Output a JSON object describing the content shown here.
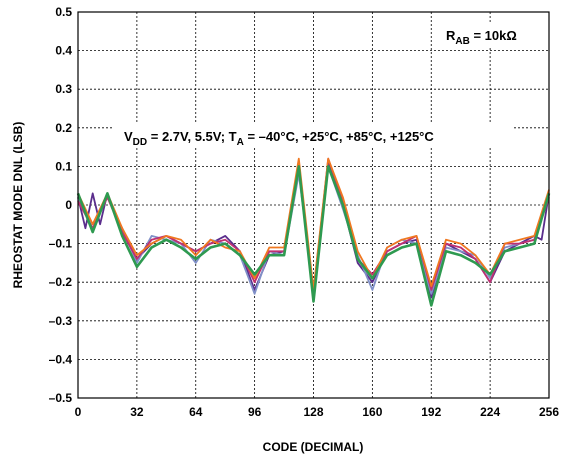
{
  "chart_data": {
    "type": "line",
    "xlabel": "CODE (DECIMAL)",
    "ylabel": "RHEOSTAT MODE DNL (LSB)",
    "xlim": [
      0,
      256
    ],
    "ylim": [
      -0.5,
      0.5
    ],
    "grid": true,
    "x_ticks": [
      "0",
      "32",
      "64",
      "96",
      "128",
      "160",
      "192",
      "224",
      "256"
    ],
    "y_ticks": [
      "0.5",
      "0.4",
      "0.3",
      "0.2",
      "0.1",
      "0",
      "–0.1",
      "–0.2",
      "–0.3",
      "–0.4",
      "–0.5"
    ],
    "annotations": {
      "rab": {
        "base": "R",
        "sub": "AB",
        "rest": " = 10kΩ"
      },
      "conditions": {
        "p1": "V",
        "sub1": "DD",
        "p2": " = 2.7V, 5.5V; T",
        "sub2": "A",
        "p3": " = –40°C, +25°C, +85°C, +125°C"
      }
    },
    "series": [
      {
        "color": "#5a2d8c",
        "x": [
          0,
          4,
          8,
          12,
          16,
          24,
          32,
          40,
          48,
          56,
          64,
          72,
          80,
          88,
          96,
          104,
          112,
          120,
          128,
          136,
          144,
          152,
          160,
          168,
          176,
          184,
          192,
          200,
          208,
          216,
          224,
          232,
          240,
          248,
          252,
          256
        ],
        "y": [
          0.02,
          -0.06,
          0.03,
          -0.05,
          0.03,
          -0.07,
          -0.14,
          -0.1,
          -0.08,
          -0.1,
          -0.12,
          -0.1,
          -0.08,
          -0.12,
          -0.22,
          -0.13,
          -0.12,
          0.1,
          -0.24,
          0.11,
          0.0,
          -0.15,
          -0.2,
          -0.12,
          -0.1,
          -0.09,
          -0.24,
          -0.1,
          -0.12,
          -0.14,
          -0.2,
          -0.12,
          -0.1,
          -0.08,
          -0.09,
          0.03
        ]
      },
      {
        "color": "#8090c8",
        "x": [
          0,
          8,
          16,
          24,
          32,
          40,
          48,
          56,
          64,
          72,
          80,
          88,
          96,
          104,
          112,
          120,
          128,
          136,
          144,
          152,
          160,
          168,
          176,
          184,
          192,
          200,
          208,
          216,
          224,
          232,
          240,
          248,
          256
        ],
        "y": [
          0.02,
          -0.05,
          0.02,
          -0.06,
          -0.15,
          -0.08,
          -0.09,
          -0.1,
          -0.15,
          -0.09,
          -0.1,
          -0.13,
          -0.23,
          -0.12,
          -0.13,
          0.08,
          -0.22,
          0.1,
          -0.01,
          -0.13,
          -0.22,
          -0.11,
          -0.09,
          -0.1,
          -0.23,
          -0.11,
          -0.12,
          -0.13,
          -0.19,
          -0.11,
          -0.1,
          -0.09,
          0.03
        ]
      },
      {
        "color": "#c03070",
        "x": [
          0,
          8,
          16,
          24,
          32,
          40,
          48,
          56,
          64,
          72,
          80,
          88,
          96,
          104,
          112,
          120,
          128,
          136,
          144,
          152,
          160,
          168,
          176,
          184,
          192,
          200,
          208,
          216,
          224,
          232,
          240,
          248,
          256
        ],
        "y": [
          0.01,
          -0.06,
          0.02,
          -0.07,
          -0.14,
          -0.09,
          -0.08,
          -0.1,
          -0.12,
          -0.1,
          -0.09,
          -0.12,
          -0.2,
          -0.12,
          -0.12,
          0.11,
          -0.23,
          0.12,
          0.01,
          -0.14,
          -0.18,
          -0.12,
          -0.1,
          -0.08,
          -0.22,
          -0.1,
          -0.11,
          -0.14,
          -0.2,
          -0.1,
          -0.1,
          -0.09,
          0.02
        ]
      },
      {
        "color": "#f07820",
        "x": [
          0,
          8,
          16,
          24,
          32,
          40,
          48,
          56,
          64,
          72,
          80,
          88,
          96,
          104,
          112,
          120,
          128,
          136,
          144,
          152,
          160,
          168,
          176,
          184,
          192,
          200,
          208,
          216,
          224,
          232,
          240,
          248,
          256
        ],
        "y": [
          0.03,
          -0.05,
          0.03,
          -0.06,
          -0.13,
          -0.1,
          -0.08,
          -0.09,
          -0.13,
          -0.09,
          -0.11,
          -0.12,
          -0.19,
          -0.11,
          -0.11,
          0.12,
          -0.22,
          0.12,
          0.02,
          -0.12,
          -0.19,
          -0.11,
          -0.09,
          -0.08,
          -0.21,
          -0.09,
          -0.1,
          -0.13,
          -0.18,
          -0.1,
          -0.09,
          -0.08,
          0.04
        ]
      },
      {
        "color": "#2e9a50",
        "x": [
          0,
          8,
          16,
          24,
          32,
          40,
          48,
          56,
          64,
          72,
          80,
          88,
          96,
          104,
          112,
          120,
          128,
          136,
          144,
          152,
          160,
          168,
          176,
          184,
          192,
          200,
          208,
          216,
          224,
          232,
          240,
          248,
          256
        ],
        "y": [
          0.03,
          -0.07,
          0.03,
          -0.08,
          -0.16,
          -0.11,
          -0.09,
          -0.11,
          -0.14,
          -0.11,
          -0.1,
          -0.13,
          -0.18,
          -0.13,
          -0.13,
          0.1,
          -0.25,
          0.1,
          0.0,
          -0.14,
          -0.19,
          -0.13,
          -0.11,
          -0.1,
          -0.26,
          -0.12,
          -0.13,
          -0.15,
          -0.18,
          -0.12,
          -0.11,
          -0.1,
          0.03
        ]
      }
    ]
  }
}
